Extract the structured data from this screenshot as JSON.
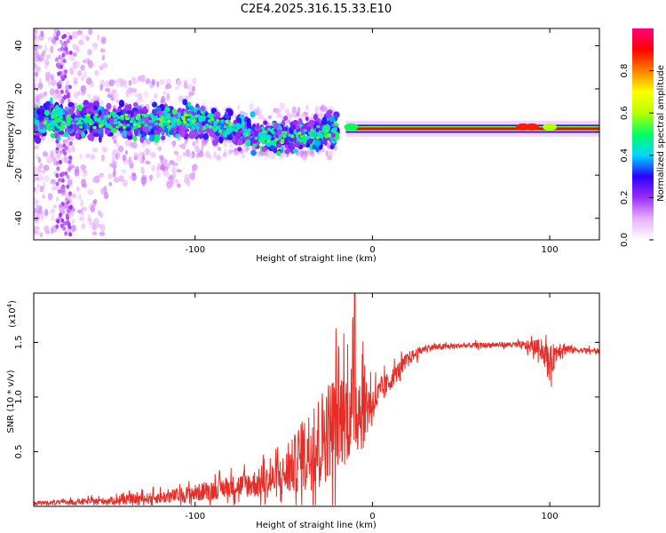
{
  "title": "C2E4.2025.316.15.33.E10",
  "chart_data": [
    {
      "type": "heatmap",
      "name": "spectrogram",
      "xlabel": "Height of straight line (km)",
      "ylabel": "Frequency (Hz)",
      "xlim": [
        -191,
        128
      ],
      "ylim": [
        -50,
        48
      ],
      "xticks": [
        -100,
        0,
        100
      ],
      "yticks": [
        -40,
        -20,
        0,
        20,
        40
      ],
      "xtick_labels": [
        "-100",
        "0",
        "100"
      ],
      "ytick_labels": [
        "-40",
        "-20",
        "0",
        "20",
        "40"
      ],
      "colorbar": {
        "label": "Normalized spectral amplitude",
        "range": [
          0,
          1
        ],
        "ticks": [
          0.0,
          0.2,
          0.4,
          0.6,
          0.8
        ],
        "tick_labels": [
          "0.0",
          "0.2",
          "0.4",
          "0.6",
          "0.8"
        ],
        "colormap": [
          "#ffffff",
          "#e8b0ff",
          "#9b2cff",
          "#2a00ff",
          "#00d8ff",
          "#00ff60",
          "#b8ff00",
          "#ffff00",
          "#ff8000",
          "#ff0000",
          "#ff0080"
        ]
      },
      "features": {
        "scatter_band": {
          "x_range": [
            -191,
            -20
          ],
          "freq_center": 4,
          "freq_halfwidth": 8
        },
        "steady_line": {
          "x_range": [
            -15,
            128
          ],
          "freq": 1.5
        }
      }
    },
    {
      "type": "line",
      "name": "snr",
      "xlabel": "Height of straight line (km)",
      "ylabel": "SNR (10 * v/v)",
      "scale_label": "(x10",
      "scale_exp": "4",
      "color": "#e62e28",
      "xlim": [
        -191,
        128
      ],
      "ylim": [
        0,
        1.95
      ],
      "xticks": [
        -100,
        0,
        100
      ],
      "yticks": [
        0.5,
        1.0,
        1.5
      ],
      "xtick_labels": [
        "-100",
        "0",
        "100"
      ],
      "ytick_labels": [
        "0.5",
        "1.0",
        "1.5"
      ],
      "envelope": {
        "x": [
          -191,
          -150,
          -120,
          -100,
          -80,
          -60,
          -50,
          -40,
          -30,
          -20,
          -10,
          -5,
          0,
          10,
          20,
          30,
          50,
          80,
          95,
          100,
          105,
          115,
          128
        ],
        "y": [
          0.03,
          0.05,
          0.08,
          0.12,
          0.18,
          0.22,
          0.28,
          0.45,
          0.6,
          0.8,
          0.9,
          0.92,
          0.95,
          1.15,
          1.35,
          1.45,
          1.47,
          1.48,
          1.45,
          1.3,
          1.45,
          1.43,
          1.42
        ],
        "noise": [
          0.02,
          0.04,
          0.07,
          0.1,
          0.12,
          0.18,
          0.25,
          0.4,
          0.55,
          0.6,
          0.55,
          0.5,
          0.2,
          0.12,
          0.08,
          0.04,
          0.03,
          0.03,
          0.1,
          0.2,
          0.1,
          0.03,
          0.03
        ]
      },
      "peak": {
        "x": -10,
        "y": 1.95
      }
    }
  ]
}
